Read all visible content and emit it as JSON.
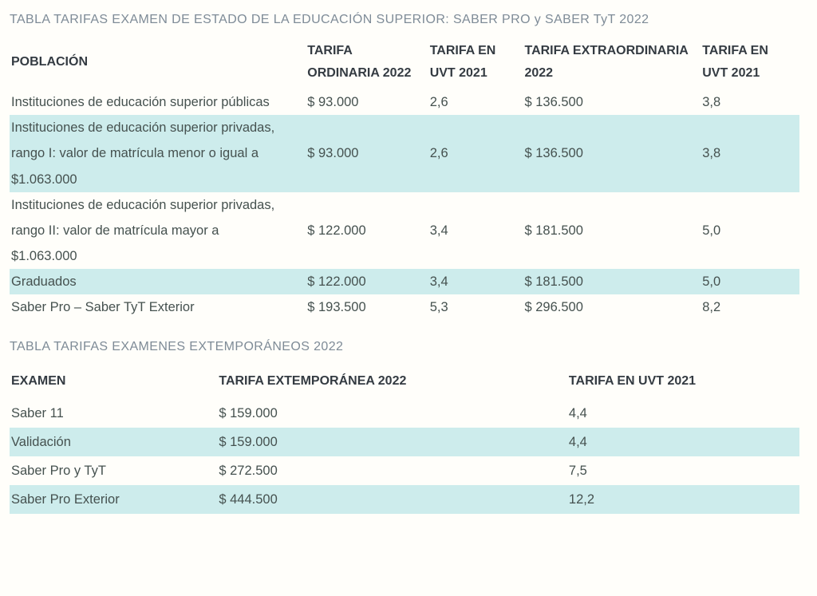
{
  "colors": {
    "stripe": "#cdecec",
    "section_title_text": "#7e8b97",
    "header_text": "#343b42",
    "body_text": "#45514f",
    "background": "#fffefa"
  },
  "section1": {
    "title": "TABLA TARIFAS EXAMEN DE ESTADO DE LA EDUCACIÓN SUPERIOR: SABER PRO y SABER TyT 2022",
    "columns": [
      "POBLACIÓN",
      "TARIFA ORDINARIA 2022",
      "TARIFA EN UVT 2021",
      "TARIFA EXTRAORDINARIA 2022",
      "TARIFA EN UVT 2021"
    ],
    "rows": [
      {
        "cells": [
          "Instituciones de educación superior públicas",
          "$ 93.000",
          "2,6",
          "$ 136.500",
          "3,8"
        ]
      },
      {
        "cells": [
          "Instituciones de educación superior privadas, rango I: valor de matrícula menor o igual a $1.063.000",
          "$ 93.000",
          "2,6",
          "$ 136.500",
          "3,8"
        ]
      },
      {
        "cells": [
          "Instituciones de educación superior privadas, rango II: valor de matrícula mayor a $1.063.000",
          "$ 122.000",
          "3,4",
          "$ 181.500",
          "5,0"
        ]
      },
      {
        "cells": [
          "Graduados",
          "$ 122.000",
          "3,4",
          "$ 181.500",
          "5,0"
        ]
      },
      {
        "cells": [
          "Saber Pro – Saber TyT Exterior",
          "$ 193.500",
          "5,3",
          "$ 296.500",
          "8,2"
        ]
      }
    ]
  },
  "section2": {
    "title": "TABLA TARIFAS EXAMENES EXTEMPORÁNEOS 2022",
    "columns": [
      "EXAMEN",
      "TARIFA EXTEMPORÁNEA 2022",
      "TARIFA EN UVT 2021"
    ],
    "rows": [
      {
        "cells": [
          "Saber 11",
          "$ 159.000",
          "4,4"
        ]
      },
      {
        "cells": [
          "Validación",
          "$ 159.000",
          "4,4"
        ]
      },
      {
        "cells": [
          "Saber Pro y TyT",
          "$ 272.500",
          "7,5"
        ]
      },
      {
        "cells": [
          "Saber Pro Exterior",
          "$ 444.500",
          "12,2"
        ]
      }
    ]
  }
}
